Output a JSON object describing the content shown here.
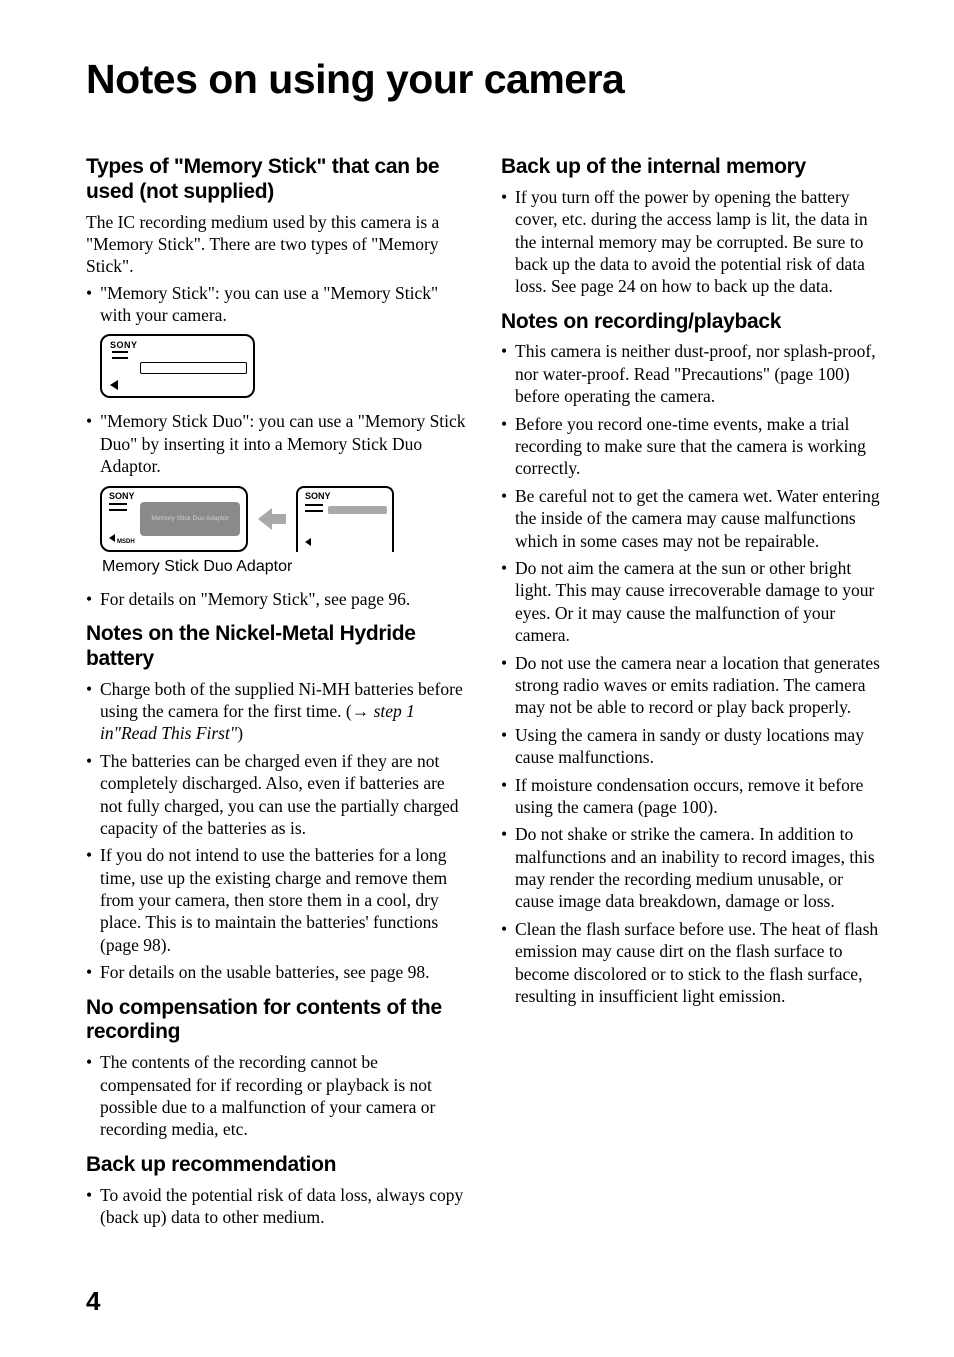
{
  "title": "Notes on using your camera",
  "pageNumber": "4",
  "col1": {
    "s1": {
      "heading": "Types of \"Memory Stick\" that can be used (not supplied)",
      "para": "The IC recording medium used by this camera is a \"Memory Stick\". There are two types of \"Memory Stick\".",
      "b1": "\"Memory Stick\": you can use a \"Memory Stick\" with your camera.",
      "b2a": "\"Memory Stick Duo\": you can use a \"Memory Stick Duo\" by inserting it into a Memory Stick Duo Adaptor.",
      "caption": "Memory Stick Duo Adaptor",
      "b3": "For details on \"Memory Stick\", see page 96.",
      "fig": {
        "sony": "SONY",
        "msdh": "MSDH",
        "duoLabel": "Memory Stick Duo Adaptor"
      }
    },
    "s2": {
      "heading": "Notes on the Nickel-Metal Hydride battery",
      "b1a": "Charge both of the supplied Ni-MH batteries before using the camera for the first time. (",
      "b1arrow": "→",
      "b1b": " step 1 in\"Read This First\"",
      "b1c": ")",
      "b2": "The batteries can be charged even if they are not completely discharged. Also, even if batteries are not fully charged, you can use the partially charged capacity of the batteries as is.",
      "b3": "If you do not intend to use the batteries for a long time, use up the existing charge and remove them from your camera, then store them in a cool, dry place. This is to maintain the batteries' functions (page 98).",
      "b4": "For details on the usable batteries, see page 98."
    },
    "s3": {
      "heading": "No compensation for contents of the recording",
      "b1": "The contents of the recording cannot be compensated for if recording or playback is not possible due to a malfunction of your camera or recording media, etc."
    },
    "s4": {
      "heading": "Back up recommendation",
      "b1": "To avoid the potential risk of data loss, always copy (back up) data to other medium."
    }
  },
  "col2": {
    "s1": {
      "heading": "Back up of the internal memory",
      "b1": "If you turn off the power by opening the battery cover, etc. during the access lamp is lit, the data in the internal memory may be corrupted. Be sure to back up the data to avoid the potential risk of data loss. See page 24 on how to back up the data."
    },
    "s2": {
      "heading": "Notes on recording/playback",
      "b1": "This camera is neither dust-proof, nor splash-proof, nor water-proof. Read \"Precautions\" (page 100) before operating the camera.",
      "b2": "Before you record one-time events, make a trial recording to make sure that the camera is working correctly.",
      "b3": "Be careful not to get the camera wet. Water entering the inside of the camera may cause malfunctions which in some cases may not be repairable.",
      "b4": "Do not aim the camera at the sun or other bright light. This may cause irrecoverable damage to your eyes. Or it may cause the malfunction of your camera.",
      "b5": "Do not use the camera near a location that generates strong radio waves or emits radiation. The camera may not be able to record or play back properly.",
      "b6": "Using the camera in sandy or dusty locations may cause malfunctions.",
      "b7": "If moisture condensation occurs, remove it before using the camera (page 100).",
      "b8": "Do not shake or strike the camera. In addition to malfunctions and an inability to record images, this may render the recording medium unusable, or cause image data breakdown, damage or loss.",
      "b9": "Clean the flash surface before use. The heat of flash emission may cause dirt on the flash surface to become discolored or to stick to the flash surface, resulting in insufficient light emission."
    }
  }
}
